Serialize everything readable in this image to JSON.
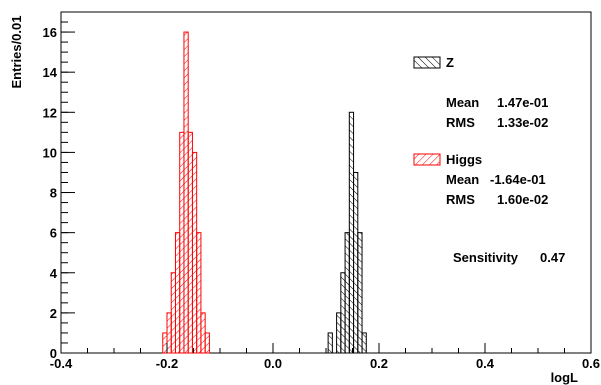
{
  "chart_data": {
    "type": "histogram",
    "xlabel": "logL",
    "ylabel": "Entries/0.01",
    "xlim": [
      -0.4,
      0.6
    ],
    "ylim": [
      0,
      17
    ],
    "x_ticks": [
      "-0.4",
      "-0.2",
      "0.0",
      "0.2",
      "0.4",
      "0.6"
    ],
    "y_ticks": [
      "0",
      "2",
      "4",
      "6",
      "8",
      "10",
      "12",
      "14",
      "16"
    ],
    "grid": false,
    "legend_position": "right",
    "series": [
      {
        "name": "Z",
        "color": "#000000",
        "hatch": "diagonal-down",
        "bins": [
          {
            "x0": 0.104,
            "x1": 0.112,
            "y": 1
          },
          {
            "x0": 0.112,
            "x1": 0.12,
            "y": 0
          },
          {
            "x0": 0.12,
            "x1": 0.128,
            "y": 2
          },
          {
            "x0": 0.128,
            "x1": 0.136,
            "y": 4
          },
          {
            "x0": 0.136,
            "x1": 0.144,
            "y": 6
          },
          {
            "x0": 0.144,
            "x1": 0.152,
            "y": 12
          },
          {
            "x0": 0.152,
            "x1": 0.16,
            "y": 9
          },
          {
            "x0": 0.16,
            "x1": 0.168,
            "y": 6
          },
          {
            "x0": 0.168,
            "x1": 0.176,
            "y": 1
          }
        ],
        "stats": {
          "mean_label": "Mean",
          "mean": "1.47e-01",
          "rms_label": "RMS",
          "rms": "1.33e-02"
        }
      },
      {
        "name": "Higgs",
        "color": "#ff0000",
        "hatch": "diagonal-up",
        "bins": [
          {
            "x0": -0.208,
            "x1": -0.2,
            "y": 1
          },
          {
            "x0": -0.2,
            "x1": -0.192,
            "y": 2
          },
          {
            "x0": -0.192,
            "x1": -0.184,
            "y": 4
          },
          {
            "x0": -0.184,
            "x1": -0.176,
            "y": 6
          },
          {
            "x0": -0.176,
            "x1": -0.168,
            "y": 11
          },
          {
            "x0": -0.168,
            "x1": -0.16,
            "y": 16
          },
          {
            "x0": -0.16,
            "x1": -0.152,
            "y": 11
          },
          {
            "x0": -0.152,
            "x1": -0.144,
            "y": 10
          },
          {
            "x0": -0.144,
            "x1": -0.136,
            "y": 6
          },
          {
            "x0": -0.136,
            "x1": -0.128,
            "y": 2
          },
          {
            "x0": -0.128,
            "x1": -0.12,
            "y": 1
          }
        ],
        "stats": {
          "mean_label": "Mean",
          "mean": "-1.64e-01",
          "rms_label": "RMS",
          "rms": "1.60e-02"
        }
      }
    ],
    "annotation": {
      "label": "Sensitivity",
      "value": "0.47"
    }
  }
}
